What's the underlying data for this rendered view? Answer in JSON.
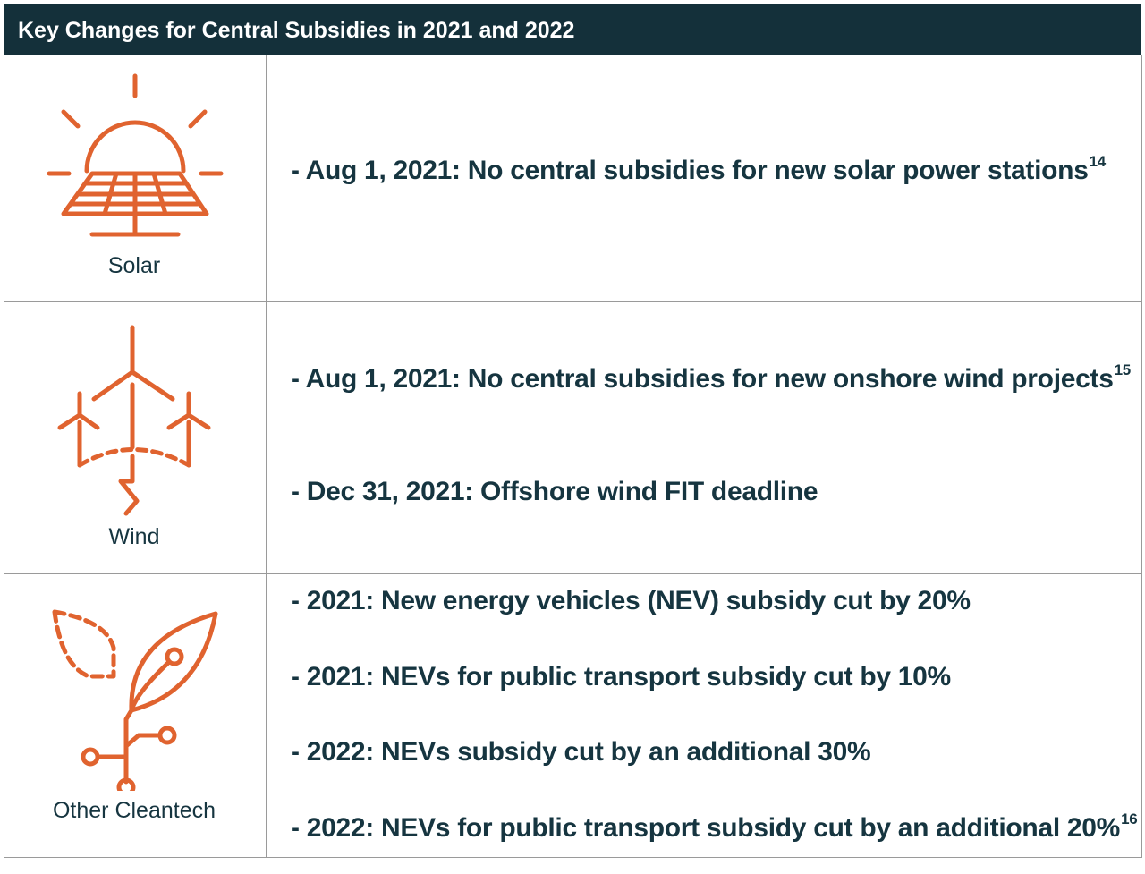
{
  "title": "Key Changes for Central Subsidies in 2021 and 2022",
  "accent_color": "#e0632f",
  "header_color": "#14303a",
  "rows": [
    {
      "label": "Solar",
      "icon": "solar-panel-icon",
      "items": [
        {
          "text": "- Aug 1, 2021: No central subsidies for new solar power stations",
          "note": "14"
        }
      ]
    },
    {
      "label": "Wind",
      "icon": "wind-turbine-icon",
      "items": [
        {
          "text": "- Aug 1, 2021: No central subsidies for new onshore wind projects",
          "note": "15"
        },
        {
          "text": "- Dec 31, 2021: Offshore wind FIT deadline",
          "note": ""
        }
      ]
    },
    {
      "label": "Other Cleantech",
      "icon": "leaf-circuit-icon",
      "items": [
        {
          "text": "- 2021: New energy vehicles (NEV) subsidy cut by 20%",
          "note": ""
        },
        {
          "text": "- 2021: NEVs for public transport subsidy cut by 10%",
          "note": ""
        },
        {
          "text": "- 2022: NEVs subsidy cut by an additional 30%",
          "note": ""
        },
        {
          "text": "- 2022: NEVs for public transport subsidy cut by an additional 20%",
          "note": "16"
        }
      ]
    }
  ]
}
